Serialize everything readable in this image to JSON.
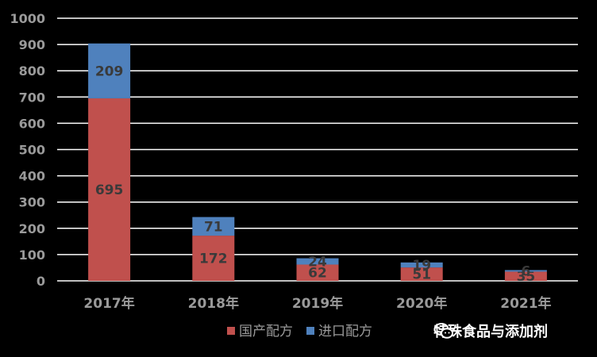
{
  "chart_data": {
    "type": "bar",
    "stacked": true,
    "categories": [
      "2017年",
      "2018年",
      "2019年",
      "2020年",
      "2021年"
    ],
    "series": [
      {
        "name": "国产配方",
        "values": [
          695,
          172,
          62,
          51,
          35
        ],
        "color": "#c0504d"
      },
      {
        "name": "进口配方",
        "values": [
          209,
          71,
          24,
          19,
          6
        ],
        "color": "#4f81bd"
      }
    ],
    "ylim": [
      0,
      1000
    ],
    "yticks": [
      0,
      100,
      200,
      300,
      400,
      500,
      600,
      700,
      800,
      900,
      1000
    ],
    "grid": true,
    "legend_position": "bottom"
  },
  "watermark": {
    "text": "特殊食品与添加剂",
    "icon": "wechat-icon"
  }
}
